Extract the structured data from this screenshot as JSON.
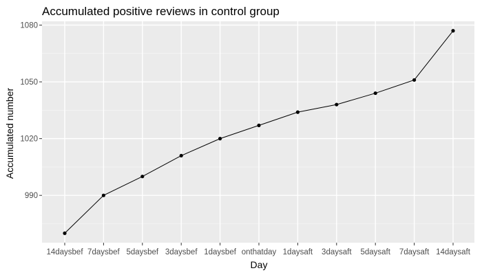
{
  "chart_data": {
    "type": "line",
    "title": "Accumulated positive reviews in control group",
    "xlabel": "Day",
    "ylabel": "Accumulated number",
    "categories": [
      "14daysbef",
      "7daysbef",
      "5daysbef",
      "3daysbef",
      "1daysbef",
      "onthatday",
      "1daysaft",
      "3daysaft",
      "5daysaft",
      "7daysaft",
      "14daysaft"
    ],
    "series": [
      {
        "values": [
          970,
          990,
          1000,
          1011,
          1020,
          1027,
          1034,
          1038,
          1044,
          1051,
          1077
        ]
      }
    ],
    "yticks": [
      990,
      1020,
      1050,
      1080
    ],
    "ylim": [
      965,
      1082
    ],
    "grid": true,
    "legend": "none",
    "colors": {
      "panel": "#ebebeb",
      "grid_major": "#ffffff",
      "grid_minor": "#f5f5f5",
      "line": "#000000",
      "point": "#000000",
      "tick_mark": "#333333"
    }
  }
}
